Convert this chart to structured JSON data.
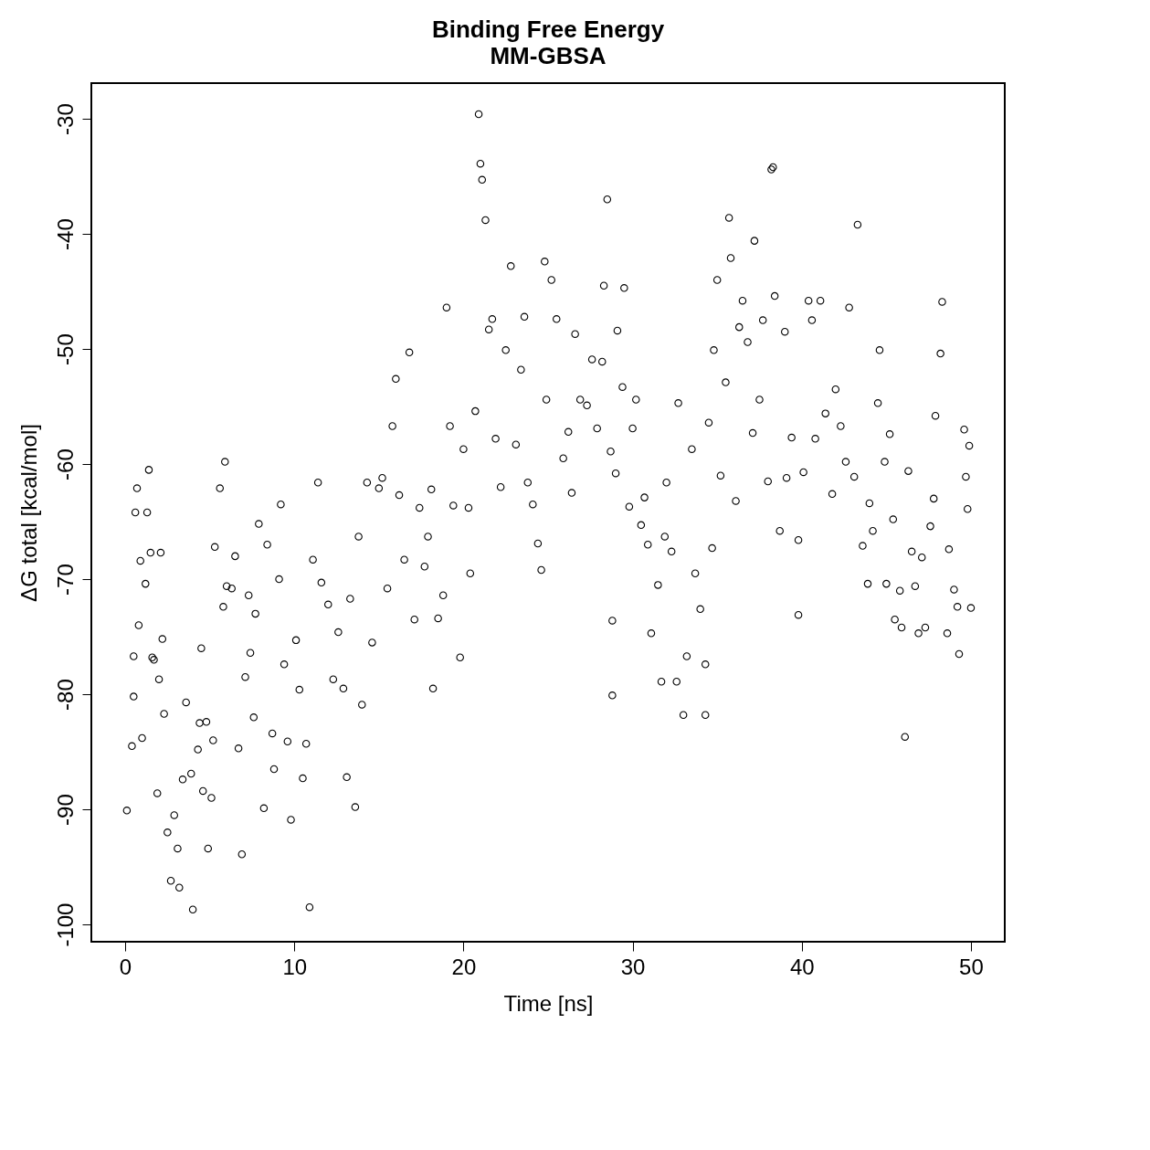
{
  "chart_data": {
    "type": "scatter",
    "title": "Binding Free Energy",
    "subtitle": "MM-GBSA",
    "xlabel": "Time [ns]",
    "ylabel": "ΔG total [kcal/mol]",
    "xlim": [
      -2,
      52
    ],
    "xticks": [
      0,
      10,
      20,
      30,
      40,
      50
    ],
    "ylim": [
      -101.5,
      -26.9
    ],
    "yticks": [
      -100,
      -90,
      -80,
      -70,
      -60,
      -50,
      -40,
      -30
    ],
    "grid": false,
    "marker": "circle",
    "series": [
      {
        "color": "#000000",
        "x": [
          0.1,
          0.4,
          0.5,
          0.5,
          0.6,
          0.7,
          0.8,
          0.9,
          1.0,
          1.2,
          1.3,
          1.4,
          1.5,
          1.6,
          1.7,
          1.9,
          2.0,
          2.1,
          2.2,
          2.3,
          2.5,
          2.7,
          2.9,
          3.1,
          3.2,
          3.4,
          3.6,
          3.9,
          4.0,
          4.3,
          4.4,
          4.5,
          4.6,
          4.8,
          4.9,
          5.1,
          5.2,
          5.3,
          5.6,
          5.8,
          5.9,
          6.0,
          6.3,
          6.5,
          6.7,
          6.9,
          7.1,
          7.3,
          7.4,
          7.6,
          7.7,
          7.9,
          8.2,
          8.4,
          8.7,
          8.8,
          9.1,
          9.2,
          9.4,
          9.6,
          9.8,
          10.1,
          10.3,
          10.5,
          10.7,
          10.9,
          11.1,
          11.4,
          11.6,
          12.0,
          12.3,
          12.6,
          12.9,
          13.1,
          13.3,
          13.6,
          13.8,
          14.0,
          14.3,
          14.6,
          15.0,
          15.2,
          15.5,
          15.8,
          16.0,
          16.2,
          16.5,
          16.8,
          17.1,
          17.4,
          17.7,
          17.9,
          18.1,
          18.2,
          18.5,
          18.8,
          19.0,
          19.2,
          19.4,
          19.8,
          20.0,
          20.3,
          20.4,
          20.7,
          20.9,
          21.0,
          21.1,
          21.3,
          21.5,
          21.7,
          21.9,
          22.2,
          22.5,
          22.8,
          23.1,
          23.4,
          23.6,
          23.8,
          24.1,
          24.4,
          24.6,
          24.8,
          24.9,
          25.2,
          25.5,
          25.9,
          26.2,
          26.4,
          26.6,
          26.9,
          27.3,
          27.6,
          27.9,
          28.2,
          28.3,
          28.5,
          28.7,
          28.8,
          28.8,
          29.0,
          29.1,
          29.4,
          29.5,
          29.8,
          30.0,
          30.2,
          30.5,
          30.7,
          30.9,
          31.1,
          31.5,
          31.7,
          31.9,
          32.0,
          32.3,
          32.6,
          32.7,
          33.0,
          33.2,
          33.5,
          33.7,
          34.0,
          34.3,
          34.3,
          34.5,
          34.7,
          34.8,
          35.0,
          35.2,
          35.5,
          35.7,
          35.8,
          36.1,
          36.3,
          36.5,
          36.8,
          37.1,
          37.2,
          37.5,
          37.7,
          38.0,
          38.2,
          38.3,
          38.4,
          38.7,
          39.0,
          39.1,
          39.4,
          39.8,
          39.8,
          40.1,
          40.4,
          40.6,
          40.8,
          41.1,
          41.4,
          41.8,
          42.0,
          42.3,
          42.6,
          42.8,
          43.1,
          43.3,
          43.6,
          43.9,
          44.0,
          44.2,
          44.5,
          44.6,
          44.9,
          45.0,
          45.2,
          45.4,
          45.5,
          45.8,
          45.9,
          46.1,
          46.3,
          46.5,
          46.7,
          46.9,
          47.1,
          47.3,
          47.6,
          47.8,
          47.9,
          48.2,
          48.3,
          48.6,
          48.7,
          49.0,
          49.2,
          49.3,
          49.6,
          49.7,
          49.8,
          49.9,
          50.0
        ],
        "values": [
          -90.1,
          -84.5,
          -80.2,
          -76.7,
          -64.2,
          -62.1,
          -74.0,
          -68.4,
          -83.8,
          -70.4,
          -64.2,
          -60.5,
          -67.7,
          -76.8,
          -77.0,
          -88.6,
          -78.7,
          -67.7,
          -75.2,
          -81.7,
          -92.0,
          -96.2,
          -90.5,
          -93.4,
          -96.8,
          -87.4,
          -80.7,
          -86.9,
          -98.7,
          -84.8,
          -82.5,
          -76.0,
          -88.4,
          -82.4,
          -93.4,
          -89.0,
          -84.0,
          -67.2,
          -62.1,
          -72.4,
          -59.8,
          -70.6,
          -70.8,
          -68.0,
          -84.7,
          -93.9,
          -78.5,
          -71.4,
          -76.4,
          -82.0,
          -73.0,
          -65.2,
          -89.9,
          -67.0,
          -83.4,
          -86.5,
          -70.0,
          -63.5,
          -77.4,
          -84.1,
          -90.9,
          -75.3,
          -79.6,
          -87.3,
          -84.3,
          -98.5,
          -68.3,
          -61.6,
          -70.3,
          -72.2,
          -78.7,
          -74.6,
          -79.5,
          -87.2,
          -71.7,
          -89.8,
          -66.3,
          -80.9,
          -61.6,
          -75.5,
          -62.1,
          -61.2,
          -70.8,
          -56.7,
          -52.6,
          -62.7,
          -68.3,
          -50.3,
          -73.5,
          -63.8,
          -68.9,
          -66.3,
          -62.2,
          -79.5,
          -73.4,
          -71.4,
          -46.4,
          -56.7,
          -63.6,
          -76.8,
          -58.7,
          -63.8,
          -69.5,
          -55.4,
          -29.6,
          -33.9,
          -35.3,
          -38.8,
          -48.3,
          -47.4,
          -57.8,
          -62.0,
          -50.1,
          -42.8,
          -58.3,
          -51.8,
          -47.2,
          -61.6,
          -63.5,
          -66.9,
          -69.2,
          -42.4,
          -54.4,
          -44.0,
          -47.4,
          -59.5,
          -57.2,
          -62.5,
          -48.7,
          -54.4,
          -54.9,
          -50.9,
          -56.9,
          -51.1,
          -44.5,
          -37.0,
          -58.9,
          -73.6,
          -80.1,
          -60.8,
          -48.4,
          -53.3,
          -44.7,
          -63.7,
          -56.9,
          -54.4,
          -65.3,
          -62.9,
          -67.0,
          -74.7,
          -70.5,
          -78.9,
          -66.3,
          -61.6,
          -67.6,
          -78.9,
          -54.7,
          -81.8,
          -76.7,
          -58.7,
          -69.5,
          -72.6,
          -81.8,
          -77.4,
          -56.4,
          -67.3,
          -50.1,
          -44.0,
          -61.0,
          -52.9,
          -38.6,
          -42.1,
          -63.2,
          -48.1,
          -45.8,
          -49.4,
          -57.3,
          -40.6,
          -54.4,
          -47.5,
          -61.5,
          -34.4,
          -34.2,
          -45.4,
          -65.8,
          -48.5,
          -61.2,
          -57.7,
          -66.6,
          -73.1,
          -60.7,
          -45.8,
          -47.5,
          -57.8,
          -45.8,
          -55.6,
          -62.6,
          -53.5,
          -56.7,
          -59.8,
          -46.4,
          -61.1,
          -39.2,
          -67.1,
          -70.4,
          -63.4,
          -65.8,
          -54.7,
          -50.1,
          -59.8,
          -70.4,
          -57.4,
          -64.8,
          -73.5,
          -71.0,
          -74.2,
          -83.7,
          -60.6,
          -67.6,
          -70.6,
          -74.7,
          -68.1,
          -74.2,
          -65.4,
          -63.0,
          -55.8,
          -50.4,
          -45.9,
          -74.7,
          -67.4,
          -70.9,
          -72.4,
          -76.5,
          -57.0,
          -61.1,
          -63.9,
          -58.4,
          -72.5
        ]
      }
    ]
  }
}
